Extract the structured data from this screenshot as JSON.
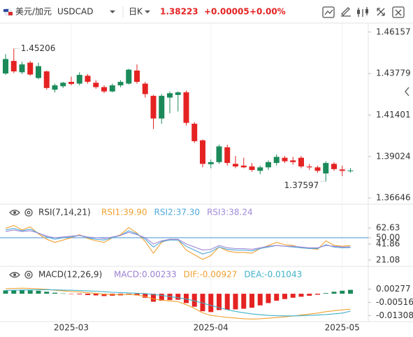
{
  "header": {
    "pair_cn": "美元/加元",
    "symbol": "USDCAD",
    "period": "日K",
    "price": "1.38223",
    "change": "+0.00005",
    "change_pct": "+0.00%"
  },
  "chart_data": [
    {
      "type": "candlestick",
      "up_color": "#1b8a5a",
      "down_color": "#e52222",
      "categories": [
        null,
        null,
        null,
        null,
        null,
        null,
        null,
        null,
        "2025-03",
        null,
        null,
        null,
        null,
        null,
        null,
        null,
        null,
        null,
        null,
        null,
        null,
        null,
        null,
        null,
        null,
        "2025-04",
        null,
        null,
        null,
        null,
        null,
        null,
        null,
        null,
        null,
        null,
        null,
        null,
        null,
        null,
        null,
        "2025-05",
        null
      ],
      "open": [
        1.4378,
        1.445,
        1.4385,
        1.444,
        1.4352,
        1.439,
        1.4285,
        1.4305,
        1.433,
        1.432,
        1.4365,
        1.4325,
        1.43,
        1.4275,
        1.431,
        1.432,
        1.4395,
        1.432,
        1.425,
        1.412,
        1.424,
        1.4255,
        1.427,
        1.409,
        1.3995,
        1.3858,
        1.387,
        1.3955,
        1.386,
        1.385,
        1.3845,
        1.382,
        1.384,
        1.3865,
        1.3895,
        1.388,
        1.3895,
        1.3845,
        1.384,
        1.3805,
        1.386,
        1.3828,
        1.3818
      ],
      "high": [
        1.4489,
        1.45206,
        1.4445,
        1.445,
        1.444,
        1.4395,
        1.432,
        1.433,
        1.436,
        1.4385,
        1.4375,
        1.434,
        1.431,
        1.432,
        1.434,
        1.4405,
        1.443,
        1.433,
        1.4255,
        1.426,
        1.4275,
        1.4275,
        1.428,
        1.41,
        1.4,
        1.3885,
        1.397,
        1.397,
        1.3905,
        1.3895,
        1.3865,
        1.385,
        1.388,
        1.3915,
        1.3905,
        1.39,
        1.3905,
        1.386,
        1.385,
        1.3875,
        1.387,
        1.385,
        1.3835
      ],
      "low": [
        1.437,
        1.438,
        1.4375,
        1.4365,
        1.4345,
        1.4285,
        1.427,
        1.4295,
        1.431,
        1.431,
        1.432,
        1.429,
        1.4265,
        1.427,
        1.43,
        1.4315,
        1.432,
        1.424,
        1.406,
        1.409,
        1.415,
        1.416,
        1.408,
        1.398,
        1.384,
        1.3835,
        1.386,
        1.385,
        1.3835,
        1.3835,
        1.3815,
        1.38,
        1.3825,
        1.385,
        1.3865,
        1.3855,
        1.3835,
        1.3825,
        1.381,
        1.37597,
        1.382,
        1.379,
        1.381
      ],
      "close": [
        1.4461,
        1.439,
        1.443,
        1.4372,
        1.442,
        1.4295,
        1.431,
        1.4325,
        1.4318,
        1.437,
        1.433,
        1.43,
        1.4275,
        1.431,
        1.433,
        1.44,
        1.433,
        1.426,
        1.412,
        1.425,
        1.4265,
        1.427,
        1.4095,
        1.399,
        1.386,
        1.387,
        1.396,
        1.3865,
        1.3845,
        1.384,
        1.3825,
        1.384,
        1.387,
        1.39,
        1.3875,
        1.387,
        1.3845,
        1.384,
        1.382,
        1.3865,
        1.383,
        1.382,
        1.3822
      ],
      "ylim": [
        1.3637,
        1.4647
      ],
      "yticks": [
        1.46157,
        1.43779,
        1.41401,
        1.39024,
        1.36646
      ],
      "annotations": [
        {
          "label": "1.45206",
          "value": 1.45206,
          "at": "high"
        },
        {
          "label": "1.37597",
          "value": 1.37597,
          "at": "low"
        }
      ]
    },
    {
      "type": "line",
      "title": "RSI(7,14,21)",
      "ylim": [
        13.9,
        75.3
      ],
      "yticks": [
        62.63,
        {
          "value": 50,
          "label": "50.00"
        },
        41.86,
        21.08
      ],
      "ref_line": {
        "value": 50,
        "color": "#6aa6dc"
      },
      "series": [
        {
          "name": "RSI1:39.90",
          "color": "#f0a030",
          "values": [
            62,
            66,
            60,
            64,
            55,
            48,
            44,
            47,
            50,
            54,
            49,
            46,
            44,
            50,
            54,
            63,
            56,
            45,
            30,
            44,
            48,
            47,
            34,
            28,
            22,
            27,
            38,
            33,
            31,
            31,
            30,
            36,
            40,
            44,
            41,
            40,
            37,
            36,
            35,
            46,
            40,
            39,
            39.9
          ]
        },
        {
          "name": "RSI2:37.30",
          "color": "#4fa8d8",
          "values": [
            60,
            62,
            59,
            61,
            56,
            51,
            48,
            50,
            51,
            53,
            50,
            48,
            47,
            50,
            53,
            59,
            55,
            48,
            38,
            45,
            47,
            47,
            39,
            34,
            29,
            32,
            38,
            35,
            34,
            34,
            33,
            36,
            38,
            40,
            39,
            38,
            37,
            36,
            36,
            41,
            38,
            37,
            37.3
          ]
        },
        {
          "name": "RSI3:38.24",
          "color": "#a08ad8",
          "values": [
            58,
            60,
            58,
            59,
            56,
            52,
            50,
            51,
            52,
            53,
            51,
            50,
            49,
            51,
            53,
            57,
            54,
            50,
            42,
            46,
            48,
            48,
            42,
            38,
            34,
            35,
            40,
            37,
            36,
            36,
            35,
            37,
            39,
            40,
            39,
            39,
            38,
            37,
            37,
            40,
            39,
            38,
            38.24
          ]
        }
      ]
    },
    {
      "type": "macd",
      "title": "MACD(12,26,9)",
      "ylim": [
        -0.01674,
        0.00928
      ],
      "yticks": [
        0.00277,
        -0.00516,
        -0.01308
      ],
      "pos_color": "#1b8a5a",
      "neg_color": "#e52222",
      "histogram": {
        "name": "MACD:0.00233",
        "color": "#9a7fd1",
        "values": [
          0.002,
          0.0022,
          0.0024,
          0.002,
          0.0018,
          0.0012,
          0.0006,
          0.0002,
          -0.0002,
          -0.0004,
          -0.0008,
          -0.001,
          -0.0014,
          -0.0012,
          -0.001,
          -0.0006,
          -0.001,
          -0.0024,
          -0.0048,
          -0.0042,
          -0.0038,
          -0.0036,
          -0.0056,
          -0.0078,
          -0.0105,
          -0.011,
          -0.0098,
          -0.0096,
          -0.0094,
          -0.009,
          -0.0084,
          -0.007,
          -0.0056,
          -0.0042,
          -0.0032,
          -0.0024,
          -0.0018,
          -0.0012,
          -0.0006,
          0.0004,
          0.0012,
          0.0018,
          0.00233
        ]
      },
      "series": [
        {
          "name": "DIF:-0.00927",
          "color": "#f0a030",
          "values": [
            0.003,
            0.0032,
            0.0033,
            0.0032,
            0.003,
            0.0026,
            0.0021,
            0.0017,
            0.0013,
            0.001,
            0.0006,
            0.0002,
            -0.0003,
            -0.0005,
            -0.0006,
            -0.0004,
            -0.0008,
            -0.0016,
            -0.0032,
            -0.0038,
            -0.0043,
            -0.0048,
            -0.0066,
            -0.0088,
            -0.0115,
            -0.013,
            -0.0136,
            -0.0142,
            -0.0146,
            -0.015,
            -0.0152,
            -0.015,
            -0.0147,
            -0.0143,
            -0.0139,
            -0.0134,
            -0.0128,
            -0.0122,
            -0.0116,
            -0.0108,
            -0.0102,
            -0.0097,
            -0.00927
          ]
        },
        {
          "name": "DEA:-0.01043",
          "color": "#3fb0c8",
          "values": [
            0.002,
            0.0021,
            0.0022,
            0.0023,
            0.0024,
            0.0024,
            0.0023,
            0.0022,
            0.0021,
            0.0019,
            0.0017,
            0.0015,
            0.0012,
            0.0009,
            0.0007,
            0.0005,
            0.0003,
            0.0001,
            -0.0004,
            -0.001,
            -0.0017,
            -0.0024,
            -0.0032,
            -0.0043,
            -0.0056,
            -0.007,
            -0.0084,
            -0.0096,
            -0.0106,
            -0.0114,
            -0.0121,
            -0.0126,
            -0.013,
            -0.0132,
            -0.0133,
            -0.0133,
            -0.0132,
            -0.013,
            -0.0128,
            -0.0125,
            -0.0121,
            -0.0116,
            -0.01043
          ]
        }
      ]
    }
  ]
}
